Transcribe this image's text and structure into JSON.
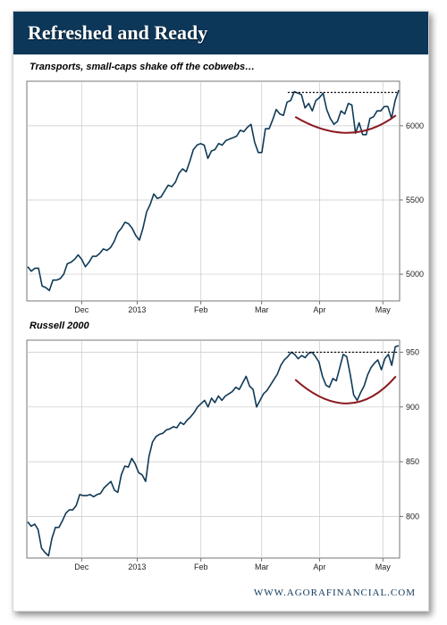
{
  "title": "Refreshed and Ready",
  "footer": "WWW.AGORAFINANCIAL.COM",
  "colors": {
    "banner": "#0d3759",
    "series": "#0f3a57",
    "curve": "#8b1a1f",
    "grid": "#c8c8c8"
  },
  "chart_data": [
    {
      "type": "line",
      "title": "Transports, small-caps shake off the cobwebs…",
      "x_ticks": [
        "Dec",
        "2013",
        "Feb",
        "Mar",
        "Apr",
        "May"
      ],
      "y_ticks": [
        5000,
        5500,
        6000
      ],
      "ylim": [
        4820,
        6300
      ],
      "grid": true,
      "resistance_level": 6225,
      "annotations": [
        "dotted resistance line at prior high",
        "rounded base curve"
      ],
      "series": [
        {
          "values": [
            5050,
            5020,
            5040,
            5040,
            4920,
            4910,
            4890,
            4960,
            4960,
            4970,
            5000,
            5070,
            5080,
            5100,
            5130,
            5100,
            5050,
            5080,
            5120,
            5120,
            5140,
            5170,
            5160,
            5180,
            5220,
            5280,
            5310,
            5350,
            5340,
            5310,
            5260,
            5230,
            5310,
            5420,
            5470,
            5540,
            5510,
            5520,
            5560,
            5600,
            5590,
            5620,
            5680,
            5710,
            5690,
            5760,
            5840,
            5870,
            5880,
            5870,
            5780,
            5830,
            5840,
            5880,
            5870,
            5900,
            5910,
            5920,
            5930,
            5970,
            5960,
            5990,
            6010,
            5890,
            5820,
            5820,
            5980,
            5980,
            6040,
            6110,
            6080,
            6070,
            6160,
            6170,
            6230,
            6220,
            6210,
            6120,
            6150,
            6100,
            6170,
            6190,
            6220,
            6110,
            6050,
            6010,
            6030,
            6100,
            6080,
            6150,
            6140,
            5950,
            6020,
            5940,
            5940,
            6050,
            6060,
            6100,
            6100,
            6130,
            6130,
            6050,
            6170,
            6240
          ]
        }
      ]
    },
    {
      "type": "line",
      "title": "Russell 2000",
      "x_ticks": [
        "Dec",
        "2013",
        "Feb",
        "Mar",
        "Apr",
        "May"
      ],
      "y_ticks": [
        800,
        850,
        900,
        950
      ],
      "ylim": [
        762,
        961
      ],
      "grid": true,
      "resistance_level": 950,
      "annotations": [
        "dotted resistance line at prior high",
        "rounded base curve"
      ],
      "series": [
        {
          "values": [
            795,
            791,
            793,
            788,
            771,
            767,
            764,
            780,
            790,
            790,
            796,
            803,
            806,
            806,
            810,
            820,
            819,
            819,
            820,
            818,
            820,
            821,
            826,
            829,
            832,
            824,
            822,
            838,
            846,
            845,
            853,
            848,
            840,
            838,
            832,
            855,
            868,
            873,
            875,
            876,
            879,
            880,
            882,
            881,
            886,
            884,
            888,
            891,
            895,
            900,
            903,
            906,
            900,
            908,
            904,
            910,
            906,
            910,
            912,
            914,
            918,
            916,
            922,
            928,
            919,
            916,
            900,
            906,
            912,
            915,
            920,
            925,
            930,
            938,
            943,
            946,
            950,
            948,
            944,
            947,
            945,
            949,
            950,
            946,
            941,
            928,
            920,
            918,
            926,
            924,
            936,
            948,
            946,
            930,
            911,
            906,
            913,
            919,
            929,
            936,
            940,
            943,
            934,
            944,
            948,
            938,
            955,
            956
          ]
        }
      ]
    }
  ]
}
